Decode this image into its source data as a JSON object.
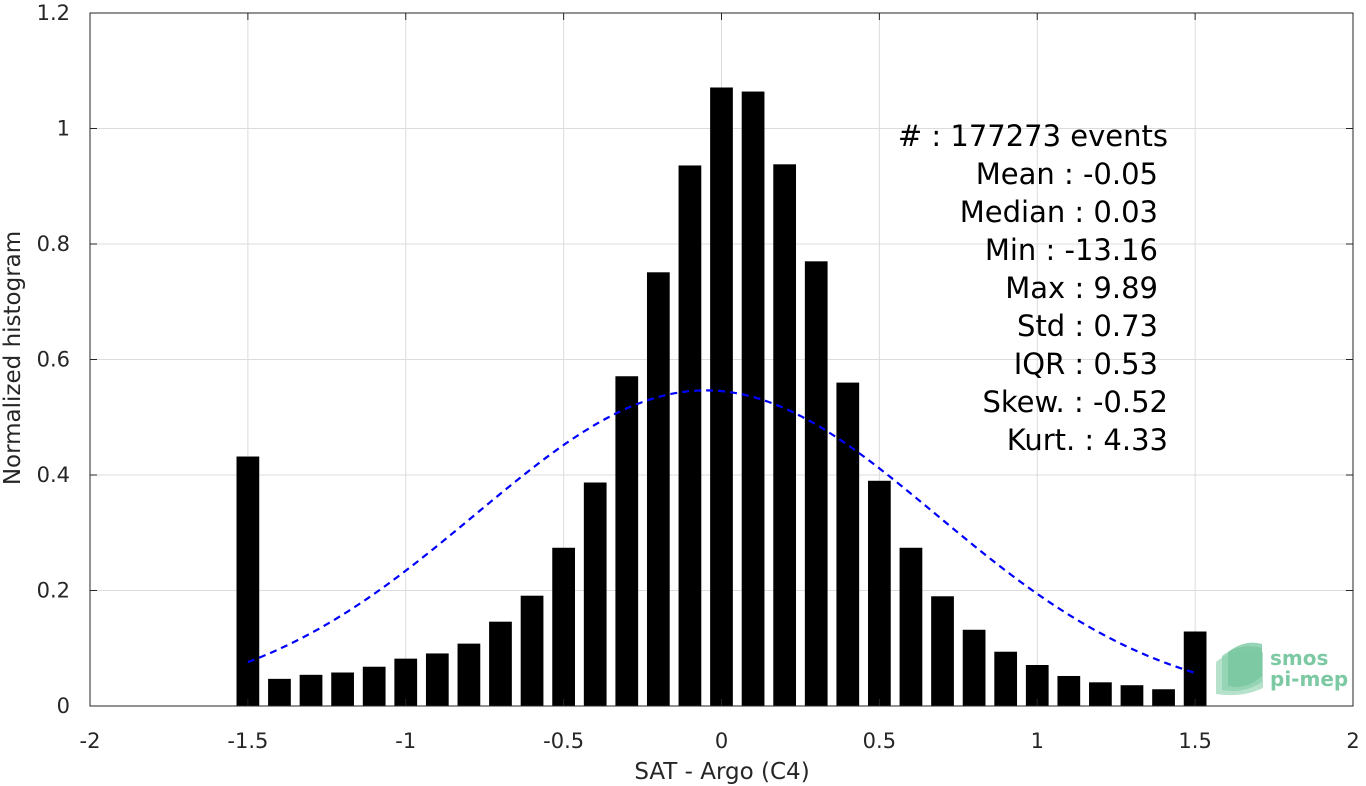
{
  "chart_data": {
    "type": "bar",
    "xlabel": "SAT - Argo (C4)",
    "ylabel": "Normalized histogram",
    "xlim": [
      -2,
      2
    ],
    "ylim": [
      0,
      1.2
    ],
    "xticks": [
      "-2",
      "-1.5",
      "-1",
      "-0.5",
      "0",
      "0.5",
      "1",
      "1.5",
      "2"
    ],
    "yticks": [
      "0",
      "0.2",
      "0.4",
      "0.6",
      "0.8",
      "1",
      "1.2"
    ],
    "grid": true,
    "bar_color": "#000000",
    "fit_color": "#0000ff",
    "bars": {
      "x": [
        -1.5,
        -1.4,
        -1.3,
        -1.2,
        -1.1,
        -1.0,
        -0.9,
        -0.8,
        -0.7,
        -0.6,
        -0.5,
        -0.4,
        -0.3,
        -0.2,
        -0.1,
        0.0,
        0.1,
        0.2,
        0.3,
        0.4,
        0.5,
        0.6,
        0.7,
        0.8,
        0.9,
        1.0,
        1.1,
        1.2,
        1.3,
        1.4,
        1.5
      ],
      "values": [
        0.432,
        0.047,
        0.054,
        0.058,
        0.068,
        0.082,
        0.091,
        0.108,
        0.146,
        0.191,
        0.274,
        0.387,
        0.571,
        0.751,
        0.936,
        1.071,
        1.064,
        0.938,
        0.77,
        0.56,
        0.39,
        0.274,
        0.19,
        0.132,
        0.094,
        0.071,
        0.052,
        0.041,
        0.036,
        0.029,
        0.129
      ]
    },
    "fit_curve": {
      "style": "dashed",
      "mean": -0.05,
      "std": 0.73,
      "range": [
        -1.5,
        1.5
      ]
    },
    "annotations": [
      "#  : 177273 events",
      "Mean : -0.05",
      "Median : 0.03",
      "Min : -13.16",
      "Max : 9.89",
      "Std : 0.73",
      "IQR : 0.53",
      "Skew. : -0.52",
      "Kurt. : 4.33"
    ],
    "logo": {
      "line1": "smos",
      "line2": "pi-mep"
    }
  }
}
